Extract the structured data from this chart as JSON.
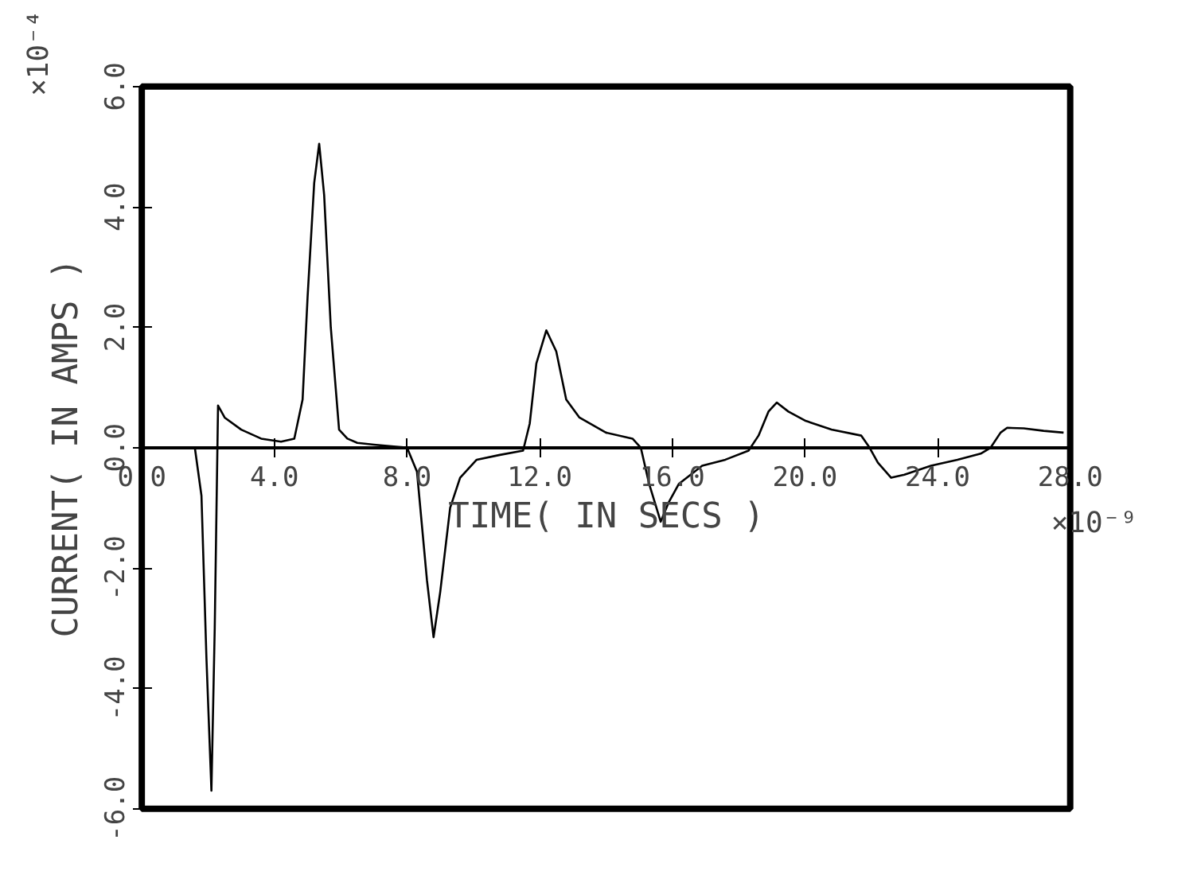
{
  "chart_data": {
    "type": "line",
    "xlabel": "TIME( IN SECS )",
    "ylabel": "CURRENT( IN AMPS )",
    "annotations": [
      "×10⁻⁴",
      "×10⁻⁹"
    ],
    "xlim": [
      0,
      28
    ],
    "ylim": [
      -6,
      6
    ],
    "xticks": [
      {
        "value": 0,
        "label": "0.0"
      },
      {
        "value": 4,
        "label": "4.0"
      },
      {
        "value": 8,
        "label": "8.0"
      },
      {
        "value": 12,
        "label": "12.0"
      },
      {
        "value": 16,
        "label": "16.0"
      },
      {
        "value": 20,
        "label": "20.0"
      },
      {
        "value": 24,
        "label": "24.0"
      },
      {
        "value": 28,
        "label": "28.0"
      }
    ],
    "yticks": [
      {
        "value": -6,
        "label": "-6.0"
      },
      {
        "value": -4,
        "label": "-4.0"
      },
      {
        "value": -2,
        "label": "-2.0"
      },
      {
        "value": 0,
        "label": "0.0"
      },
      {
        "value": 2,
        "label": "2.0"
      },
      {
        "value": 4,
        "label": "4.0"
      },
      {
        "value": 6,
        "label": "6.0"
      }
    ],
    "grid": false,
    "marker": "none",
    "line_style": "solid",
    "series": [
      {
        "color": "#000000",
        "x": [
          0,
          1.6,
          1.8,
          1.95,
          2.1,
          2.2,
          2.3,
          2.5,
          3.0,
          3.6,
          4.2,
          4.6,
          4.85,
          5.0,
          5.2,
          5.35,
          5.5,
          5.7,
          5.95,
          6.2,
          6.5,
          7.0,
          7.6,
          8.0,
          8.3,
          8.6,
          8.8,
          9.0,
          9.3,
          9.6,
          10.1,
          10.8,
          11.5,
          11.7,
          11.9,
          12.2,
          12.5,
          12.8,
          13.2,
          14.0,
          14.8,
          15.05,
          15.3,
          15.65,
          15.9,
          16.2,
          16.9,
          17.6,
          18.3,
          18.6,
          18.9,
          19.15,
          19.5,
          20.0,
          20.8,
          21.7,
          21.95,
          22.2,
          22.6,
          23.0,
          23.8,
          24.6,
          25.3,
          25.6,
          25.9,
          26.1,
          26.6,
          27.2,
          27.8
        ],
        "values": [
          0,
          0,
          -0.8,
          -3.5,
          -5.7,
          -3.0,
          0.7,
          0.5,
          0.3,
          0.15,
          0.1,
          0.15,
          0.8,
          2.5,
          4.4,
          5.05,
          4.2,
          2.0,
          0.3,
          0.15,
          0.08,
          0.05,
          0.02,
          0,
          -0.4,
          -2.2,
          -3.15,
          -2.4,
          -1.0,
          -0.5,
          -0.2,
          -0.12,
          -0.05,
          0.4,
          1.4,
          1.95,
          1.6,
          0.8,
          0.5,
          0.25,
          0.15,
          0,
          -0.6,
          -1.23,
          -0.9,
          -0.6,
          -0.3,
          -0.2,
          -0.05,
          0.2,
          0.6,
          0.75,
          0.6,
          0.45,
          0.3,
          0.2,
          0,
          -0.25,
          -0.5,
          -0.45,
          -0.3,
          -0.2,
          -0.1,
          0,
          0.25,
          0.33,
          0.32,
          0.28,
          0.25
        ]
      }
    ]
  }
}
